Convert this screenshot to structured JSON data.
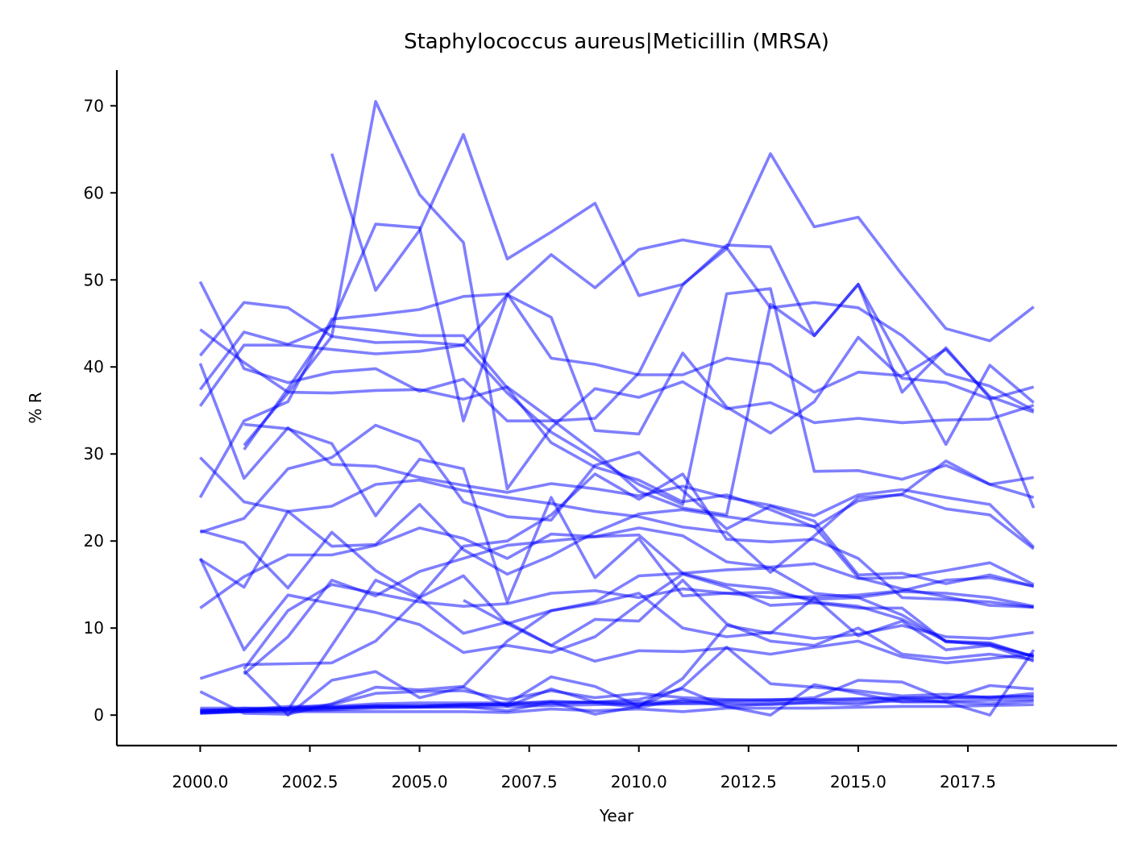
{
  "chart_data": {
    "type": "line",
    "title": "Staphylococcus aureus|Meticillin (MRSA)",
    "xlabel": "Year",
    "ylabel": "% R",
    "xlim": [
      1998.1,
      2020.9
    ],
    "ylim": [
      -3.5,
      74.1
    ],
    "xticks": [
      2000.0,
      2002.5,
      2005.0,
      2007.5,
      2010.0,
      2012.5,
      2015.0,
      2017.5
    ],
    "xtick_labels": [
      "2000.0",
      "2002.5",
      "2005.0",
      "2007.5",
      "2010.0",
      "2012.5",
      "2015.0",
      "2017.5"
    ],
    "yticks": [
      0,
      10,
      20,
      30,
      40,
      50,
      60,
      70
    ],
    "ytick_labels": [
      "0",
      "10",
      "20",
      "30",
      "40",
      "50",
      "60",
      "70"
    ],
    "grid": false,
    "line_color": "#0000ff",
    "line_opacity": 0.5,
    "x": [
      2000,
      2001,
      2002,
      2003,
      2004,
      2005,
      2006,
      2007,
      2008,
      2009,
      2010,
      2011,
      2012,
      2013,
      2014,
      2015,
      2016,
      2017,
      2018,
      2019
    ],
    "series": [
      {
        "values": [
          null,
          null,
          null,
          64.5,
          48.8,
          55.7,
          66.7,
          52.4,
          55.5,
          58.8,
          48.2,
          49.5,
          53.6,
          64.5,
          56.1,
          57.2,
          50.6,
          44.4,
          43.0,
          46.9
        ]
      },
      {
        "values": [
          null,
          31.0,
          37.0,
          43.5,
          70.5,
          59.8,
          54.3,
          26.0,
          33.0,
          37.5,
          36.5,
          38.3,
          35.2,
          35.9,
          33.6,
          34.1,
          33.6,
          33.9,
          34.0,
          35.6
        ]
      },
      {
        "values": [
          null,
          30.5,
          37.5,
          45.0,
          56.4,
          56.0,
          33.8,
          48.3,
          52.9,
          49.1,
          53.5,
          54.6,
          53.7,
          46.8,
          47.4,
          46.8,
          43.6,
          39.2,
          37.8,
          35.0
        ]
      },
      {
        "values": [
          35.5,
          42.5,
          42.5,
          42.0,
          41.5,
          41.8,
          42.5,
          48.3,
          45.7,
          32.7,
          32.3,
          41.6,
          35.4,
          32.4,
          36.0,
          43.4,
          38.7,
          38.2,
          36.3,
          37.7
        ]
      },
      {
        "values": [
          25.0,
          33.8,
          36.0,
          45.5,
          46.0,
          46.6,
          48.1,
          48.4,
          41.0,
          40.3,
          39.1,
          39.1,
          41.0,
          40.3,
          37.1,
          39.4,
          39.0,
          42.0,
          36.6,
          34.8
        ]
      },
      {
        "values": [
          41.3,
          47.4,
          46.8,
          43.5,
          42.8,
          42.9,
          42.5,
          37.0,
          32.5,
          29.5,
          26.5,
          24.2,
          48.4,
          49.0,
          28.0,
          28.1,
          27.1,
          28.7,
          26.5,
          27.3
        ]
      },
      {
        "values": [
          44.3,
          40.5,
          37.1,
          37.0,
          37.3,
          37.4,
          36.3,
          37.7,
          34.0,
          30.2,
          25.7,
          23.8,
          23.0,
          47.2,
          43.6,
          49.5,
          37.1,
          42.2,
          36.4,
          23.8
        ]
      },
      {
        "values": [
          49.8,
          39.8,
          38.2,
          39.4,
          39.8,
          37.2,
          38.6,
          33.8,
          33.8,
          34.1,
          39.3,
          49.4,
          54.0,
          53.8,
          43.6,
          49.5,
          40.4,
          31.1,
          40.2,
          35.9
        ]
      },
      {
        "values": [
          37.4,
          44.0,
          42.6,
          44.7,
          44.2,
          43.6,
          43.6,
          37.6,
          31.3,
          28.5,
          27.0,
          24.5,
          25.3,
          23.6,
          21.6,
          24.6,
          25.4,
          29.2,
          26.5,
          25.0
        ]
      },
      {
        "values": [
          40.4,
          27.2,
          33.0,
          28.8,
          28.6,
          27.3,
          26.4,
          25.6,
          26.6,
          26.0,
          25.2,
          26.3,
          25.0,
          24.1,
          22.9,
          25.3,
          25.9,
          25.0,
          24.2,
          19.3
        ]
      },
      {
        "values": [
          null,
          33.4,
          32.9,
          31.2,
          22.9,
          29.4,
          28.3,
          13.0,
          25.0,
          15.8,
          20.3,
          13.7,
          14.0,
          14.1,
          13.3,
          13.5,
          14.2,
          14.0,
          13.5,
          12.5
        ]
      },
      {
        "values": [
          29.6,
          24.5,
          23.4,
          24.0,
          26.5,
          27.0,
          25.8,
          25.0,
          24.3,
          23.4,
          22.8,
          21.6,
          21.0,
          16.4,
          20.6,
          25.0,
          25.3,
          23.7,
          23.0,
          19.1
        ]
      },
      {
        "values": [
          21.0,
          22.6,
          28.3,
          29.6,
          33.3,
          31.4,
          24.5,
          22.8,
          22.4,
          28.7,
          30.2,
          25.8,
          21.4,
          24.0,
          22.3,
          16.1,
          16.3,
          15.1,
          16.1,
          14.8
        ]
      },
      {
        "values": [
          17.9,
          14.7,
          23.4,
          19.4,
          19.6,
          24.2,
          19.0,
          16.2,
          18.3,
          21.0,
          23.1,
          23.6,
          22.8,
          22.1,
          21.7,
          15.8,
          14.5,
          13.6,
          12.6,
          12.4
        ]
      },
      {
        "values": [
          21.2,
          19.8,
          14.6,
          21.0,
          16.6,
          13.6,
          19.4,
          20.0,
          23.0,
          27.7,
          24.8,
          27.7,
          20.2,
          19.9,
          20.2,
          18.0,
          13.5,
          13.3,
          13.0,
          12.4
        ]
      },
      {
        "values": [
          18.0,
          7.5,
          13.8,
          12.8,
          11.8,
          10.4,
          7.2,
          8.0,
          7.2,
          9.0,
          12.8,
          16.2,
          14.7,
          12.6,
          12.9,
          12.3,
          12.3,
          8.4,
          8.2,
          6.7
        ]
      },
      {
        "values": [
          12.3,
          15.9,
          18.4,
          18.4,
          19.5,
          21.5,
          20.3,
          18.0,
          20.8,
          20.5,
          21.5,
          20.6,
          17.6,
          17.0,
          17.4,
          15.7,
          15.8,
          16.6,
          17.5,
          15.0
        ]
      },
      {
        "values": [
          null,
          4.7,
          9.0,
          15.5,
          13.7,
          16.5,
          18.0,
          19.5,
          20.0,
          20.5,
          20.7,
          16.3,
          15.0,
          14.5,
          13.0,
          12.5,
          11.0,
          8.5,
          8.3,
          6.7
        ]
      },
      {
        "values": [
          null,
          5.1,
          0.0,
          4.0,
          5.0,
          2.0,
          3.2,
          1.0,
          3.0,
          1.5,
          1.8,
          3.0,
          1.0,
          0.0,
          3.5,
          2.5,
          1.5,
          1.5,
          0.0,
          7.5
        ]
      },
      {
        "values": [
          4.2,
          5.8,
          5.9,
          6.0,
          8.5,
          13.5,
          16.0,
          10.5,
          8.0,
          11.0,
          10.8,
          15.5,
          10.5,
          8.5,
          8.0,
          10.0,
          7.0,
          6.5,
          7.0,
          6.4
        ]
      },
      {
        "values": [
          null,
          null,
          null,
          null,
          null,
          null,
          13.2,
          10.5,
          12.0,
          13.0,
          16.0,
          16.3,
          16.7,
          16.9,
          14.0,
          13.5,
          11.5,
          8.5,
          8.0,
          6.8
        ]
      },
      {
        "values": [
          null,
          5.3,
          12.0,
          15.0,
          14.0,
          13.0,
          12.5,
          12.8,
          14.0,
          14.3,
          13.5,
          14.5,
          14.0,
          13.5,
          13.6,
          13.8,
          14.3,
          15.5,
          15.8,
          14.8
        ]
      },
      {
        "values": [
          2.7,
          0.2,
          0.1,
          1.3,
          3.2,
          2.9,
          3.3,
          8.5,
          12.0,
          12.8,
          14.0,
          10.0,
          9.0,
          9.5,
          8.8,
          9.3,
          10.3,
          9.0,
          8.8,
          9.5
        ]
      },
      {
        "values": [
          0.4,
          0.8,
          0.6,
          8.0,
          15.5,
          13.4,
          9.4,
          10.7,
          8.0,
          6.2,
          7.4,
          7.3,
          7.7,
          7.0,
          7.8,
          8.5,
          6.7,
          6.0,
          6.5,
          7.0
        ]
      },
      {
        "values": [
          0.3,
          0.5,
          0.6,
          0.7,
          1.0,
          1.0,
          1.2,
          1.3,
          4.4,
          3.3,
          1.0,
          4.2,
          10.3,
          9.4,
          13.5,
          9.1,
          10.8,
          7.5,
          8.0,
          6.2
        ]
      },
      {
        "values": [
          0.5,
          0.6,
          1.0,
          1.0,
          1.3,
          1.4,
          1.4,
          1.4,
          1.5,
          1.5,
          1.2,
          1.3,
          1.3,
          1.2,
          1.5,
          1.5,
          1.6,
          1.6,
          1.7,
          1.8
        ]
      },
      {
        "values": [
          0.8,
          0.8,
          0.8,
          1.2,
          2.5,
          2.7,
          2.8,
          1.8,
          2.8,
          2.0,
          2.5,
          2.0,
          1.8,
          1.7,
          2.0,
          4.0,
          3.8,
          1.8,
          3.4,
          3.0
        ]
      },
      {
        "values": [
          0.2,
          0.5,
          0.7,
          0.8,
          0.9,
          0.9,
          1.0,
          0.5,
          1.5,
          0.1,
          1.0,
          3.2,
          7.8,
          3.6,
          3.2,
          2.8,
          2.2,
          2.4,
          2.0,
          2.5
        ]
      },
      {
        "values": [
          0.6,
          0.6,
          0.8,
          0.9,
          1.0,
          1.0,
          1.1,
          1.2,
          1.3,
          1.5,
          1.5,
          1.6,
          1.7,
          1.8,
          1.8,
          1.9,
          2.0,
          2.0,
          2.1,
          2.2
        ]
      },
      {
        "values": [
          0.3,
          0.4,
          0.4,
          0.4,
          0.4,
          0.4,
          0.4,
          0.3,
          0.7,
          0.5,
          0.7,
          0.4,
          0.8,
          0.8,
          0.8,
          0.9,
          1.0,
          1.0,
          1.1,
          1.2
        ]
      },
      {
        "values": [
          0.5,
          0.6,
          0.7,
          0.9,
          1.1,
          1.1,
          1.2,
          1.2,
          1.6,
          1.4,
          0.9,
          1.8,
          1.0,
          1.3,
          1.4,
          1.2,
          1.9,
          1.5,
          1.3,
          1.6
        ]
      },
      {
        "values": [
          0.2,
          0.4,
          0.5,
          0.6,
          0.8,
          0.9,
          0.9,
          1.0,
          1.1,
          1.2,
          1.3,
          1.4,
          1.5,
          1.6,
          1.7,
          1.8,
          1.9,
          2.0,
          2.0,
          2.1
        ]
      }
    ]
  }
}
